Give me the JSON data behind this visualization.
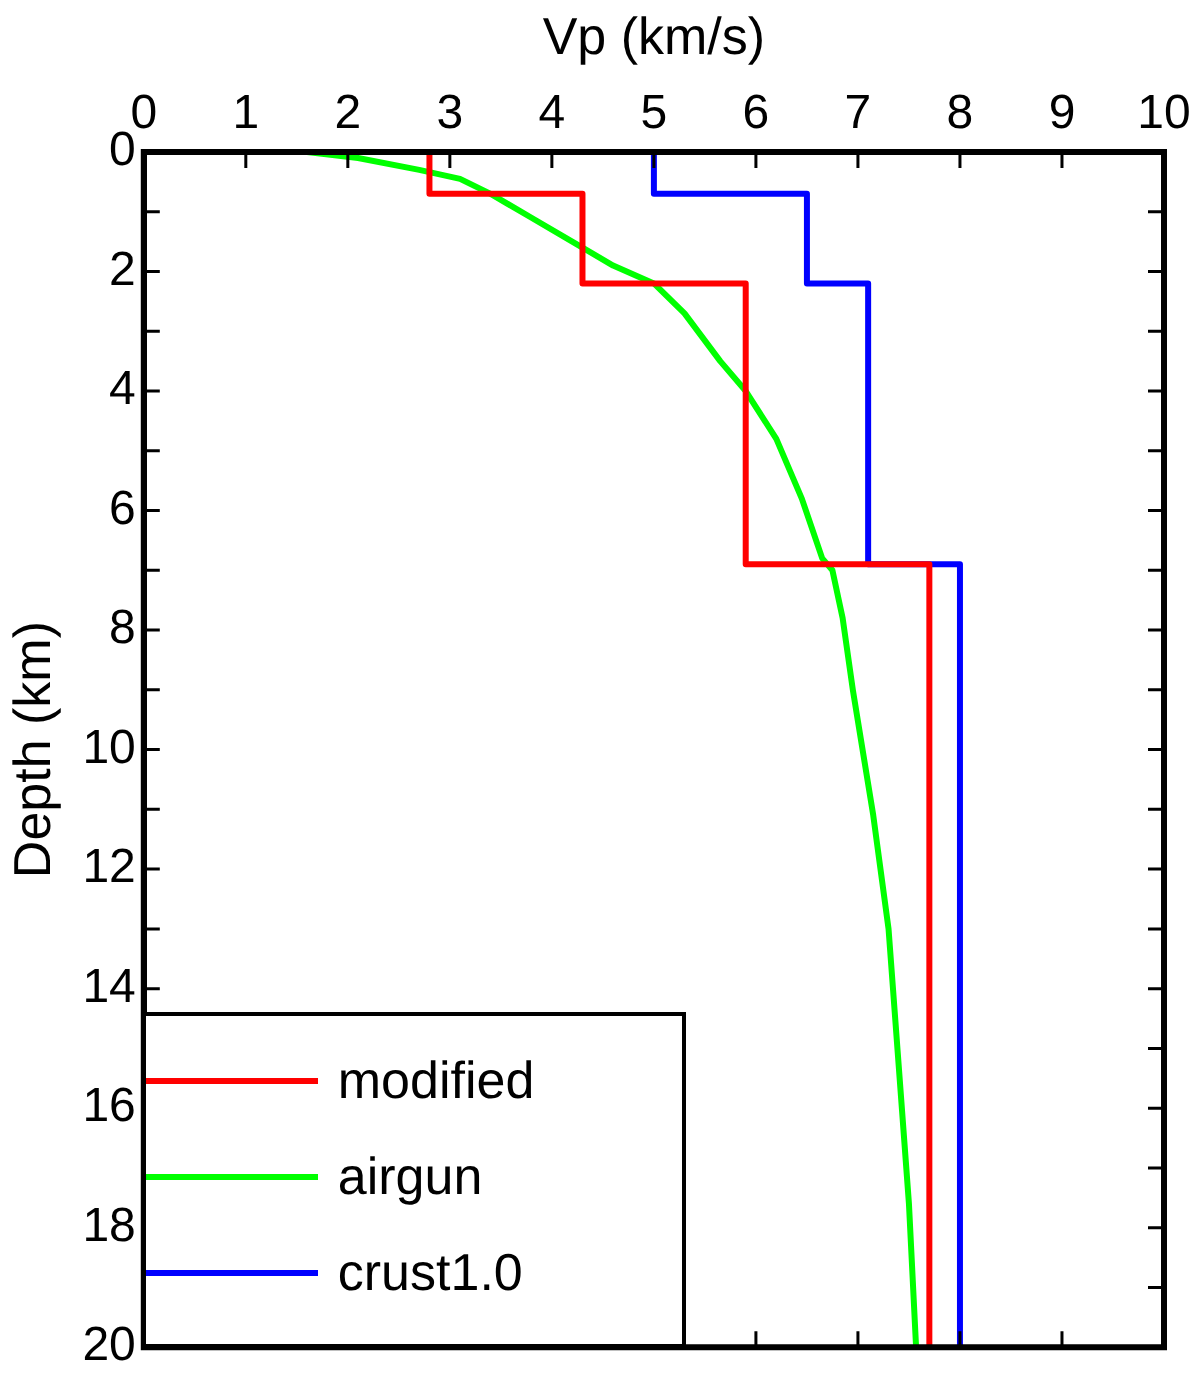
{
  "chart_data": {
    "type": "line",
    "xlabel": "Vp (km/s)",
    "ylabel": "Depth (km)",
    "xlim": [
      0,
      10
    ],
    "xticks": [
      0,
      1,
      2,
      3,
      4,
      5,
      6,
      7,
      8,
      9,
      10
    ],
    "ylim": [
      20,
      0
    ],
    "yticks": [
      0,
      {
        "value": 1,
        "label": null
      },
      2,
      {
        "value": 3,
        "label": null
      },
      4,
      {
        "value": 5,
        "label": null
      },
      6,
      {
        "value": 7,
        "label": null
      },
      8,
      {
        "value": 9,
        "label": null
      },
      10,
      {
        "value": 11,
        "label": null
      },
      12,
      {
        "value": 13,
        "label": null
      },
      14,
      {
        "value": 15,
        "label": null
      },
      16,
      {
        "value": 17,
        "label": null
      },
      18,
      {
        "value": 19,
        "label": null
      },
      20
    ],
    "marker": "none",
    "line_style": "solid",
    "legend": "bottom left",
    "series": [
      {
        "name": "modified",
        "color": "#ff0000",
        "x": [
          2.8,
          2.8,
          4.3,
          4.3,
          5.9,
          5.9,
          7.7,
          7.7
        ],
        "values": [
          0,
          0.7,
          0.7,
          2.2,
          2.2,
          6.9,
          6.9,
          20
        ]
      },
      {
        "name": "airgun",
        "color": "#00ff00",
        "x": [
          1.6,
          2.1,
          2.7,
          3.1,
          3.4,
          3.8,
          4.3,
          4.6,
          5.0,
          5.3,
          5.65,
          5.9,
          6.2,
          6.45,
          6.65,
          6.75,
          6.85,
          6.95,
          7.15,
          7.3,
          7.4,
          7.5,
          7.57
        ],
        "values": [
          0,
          0.1,
          0.3,
          0.45,
          0.7,
          1.1,
          1.6,
          1.9,
          2.2,
          2.7,
          3.5,
          4.0,
          4.8,
          5.8,
          6.8,
          7.0,
          7.8,
          9.0,
          11.1,
          13.0,
          15.3,
          17.6,
          20
        ]
      },
      {
        "name": "crust1.0",
        "color": "#0000ff",
        "x": [
          5.0,
          5.0,
          6.5,
          6.5,
          7.1,
          7.1,
          8.0,
          8.0
        ],
        "values": [
          0,
          0.7,
          0.7,
          2.2,
          2.2,
          6.9,
          6.9,
          20
        ]
      }
    ]
  }
}
